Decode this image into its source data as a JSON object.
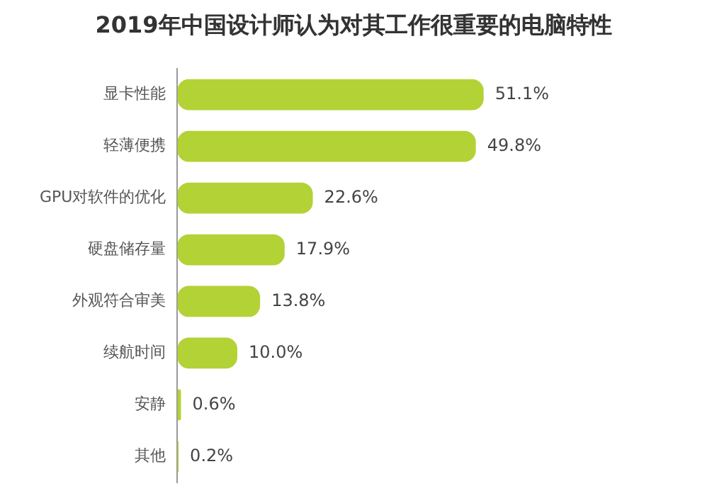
{
  "chart_data": {
    "type": "bar",
    "orientation": "horizontal",
    "title": "2019年中国设计师认为对其工作很重要的电脑特性",
    "categories": [
      "显卡性能",
      "轻薄便携",
      "GPU对软件的优化",
      "硬盘储存量",
      "外观符合审美",
      "续航时间",
      "安静",
      "其他"
    ],
    "values": [
      51.1,
      49.8,
      22.6,
      17.9,
      13.8,
      10.0,
      0.6,
      0.2
    ],
    "value_labels": [
      "51.1%",
      "49.8%",
      "22.6%",
      "17.9%",
      "13.8%",
      "10.0%",
      "0.6%",
      "0.2%"
    ],
    "color": "#b3d235",
    "grid": false,
    "legend": false,
    "tick_labels": "y"
  }
}
